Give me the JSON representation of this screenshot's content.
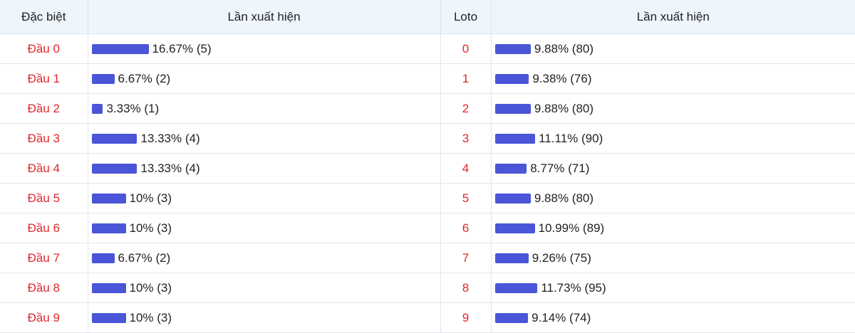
{
  "table": {
    "headers": [
      "Đặc biệt",
      "Lần xuất hiện",
      "Loto",
      "Lần xuất hiện"
    ],
    "left": [
      {
        "label": "Đầu 0",
        "value": 16.67,
        "value_label": "16.67% (5)"
      },
      {
        "label": "Đầu 1",
        "value": 6.67,
        "value_label": "6.67% (2)"
      },
      {
        "label": "Đầu 2",
        "value": 3.33,
        "value_label": "3.33% (1)"
      },
      {
        "label": "Đầu 3",
        "value": 13.33,
        "value_label": "13.33% (4)"
      },
      {
        "label": "Đầu 4",
        "value": 13.33,
        "value_label": "13.33% (4)"
      },
      {
        "label": "Đầu 5",
        "value": 10,
        "value_label": "10% (3)"
      },
      {
        "label": "Đầu 6",
        "value": 10,
        "value_label": "10% (3)"
      },
      {
        "label": "Đầu 7",
        "value": 6.67,
        "value_label": "6.67% (2)"
      },
      {
        "label": "Đầu 8",
        "value": 10,
        "value_label": "10% (3)"
      },
      {
        "label": "Đầu 9",
        "value": 10,
        "value_label": "10% (3)"
      }
    ],
    "right": [
      {
        "label": "0",
        "value": 9.88,
        "value_label": "9.88% (80)"
      },
      {
        "label": "1",
        "value": 9.38,
        "value_label": "9.38% (76)"
      },
      {
        "label": "2",
        "value": 9.88,
        "value_label": "9.88% (80)"
      },
      {
        "label": "3",
        "value": 11.11,
        "value_label": "11.11% (90)"
      },
      {
        "label": "4",
        "value": 8.77,
        "value_label": "8.77% (71)"
      },
      {
        "label": "5",
        "value": 9.88,
        "value_label": "9.88% (80)"
      },
      {
        "label": "6",
        "value": 10.99,
        "value_label": "10.99% (89)"
      },
      {
        "label": "7",
        "value": 9.26,
        "value_label": "9.26% (75)"
      },
      {
        "label": "8",
        "value": 11.73,
        "value_label": "11.73% (95)"
      },
      {
        "label": "9",
        "value": 9.14,
        "value_label": "9.14% (74)"
      }
    ]
  }
}
